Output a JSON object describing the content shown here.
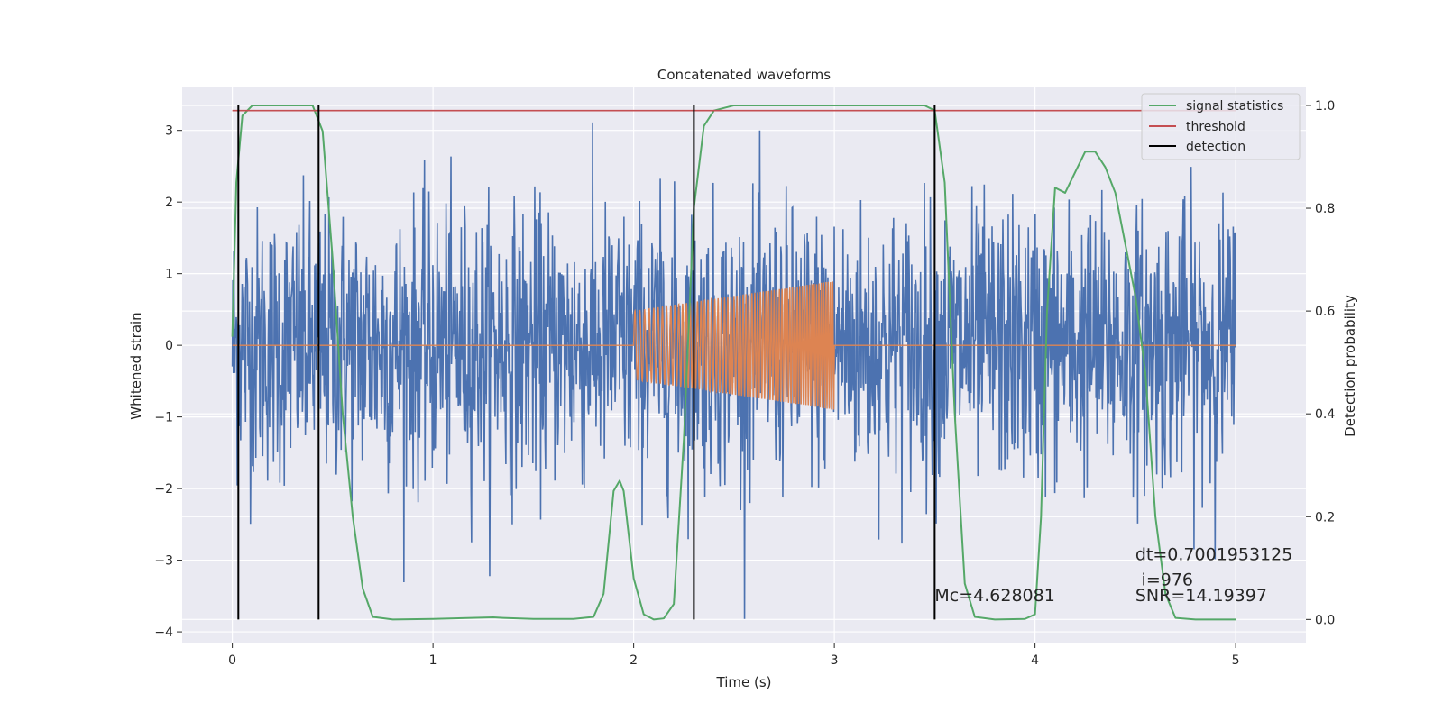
{
  "chart_data": {
    "type": "line",
    "title": "Concatenated waveforms",
    "xlabel": "Time (s)",
    "ylabel": "Whitened strain",
    "y2label": "Detection probability",
    "xlim": [
      -0.25,
      5.35
    ],
    "ylim": [
      -4.15,
      3.6
    ],
    "y2lim": [
      -0.045,
      1.035
    ],
    "x_ticks": [
      0,
      1,
      2,
      3,
      4,
      5
    ],
    "y_ticks": [
      -4,
      -3,
      -2,
      -1,
      0,
      1,
      2,
      3
    ],
    "y2_ticks": [
      0.0,
      0.2,
      0.4,
      0.6,
      0.8,
      1.0
    ],
    "y2_tick_labels": [
      "0.0",
      "0.2",
      "0.4",
      "0.6",
      "0.8",
      "1.0"
    ],
    "grid": true,
    "legend_position": "top-right",
    "legend": [
      {
        "label": "signal statistics",
        "color": "#55a868"
      },
      {
        "label": "threshold",
        "color": "#c44e52"
      },
      {
        "label": "detection",
        "color": "#000000"
      }
    ],
    "colors": {
      "noise": "#4c72b0",
      "injected_signal": "#dd8452",
      "signal_statistics": "#55a868",
      "threshold": "#c44e52",
      "detection": "#000000",
      "plot_background": "#eaeaf2"
    },
    "series": [
      {
        "role": "whitened-noise",
        "axis": "left",
        "x_range": [
          0,
          5
        ],
        "samples": 2048,
        "amplitude_range": [
          -3.9,
          3.25
        ]
      },
      {
        "role": "injected-signal",
        "axis": "left",
        "x_range": [
          2,
          3
        ],
        "envelope_start": 0.48,
        "envelope_end": 0.9
      },
      {
        "name": "signal statistics",
        "axis": "right",
        "x": [
          0,
          0.02,
          0.05,
          0.1,
          0.2,
          0.4,
          0.45,
          0.5,
          0.55,
          0.6,
          0.65,
          0.7,
          0.8,
          1.0,
          1.3,
          1.35,
          1.5,
          1.7,
          1.8,
          1.85,
          1.9,
          1.93,
          1.95,
          2.0,
          2.05,
          2.1,
          2.15,
          2.2,
          2.25,
          2.3,
          2.35,
          2.4,
          2.5,
          3.0,
          3.45,
          3.5,
          3.55,
          3.6,
          3.65,
          3.7,
          3.8,
          3.95,
          4.0,
          4.03,
          4.06,
          4.1,
          4.15,
          4.2,
          4.25,
          4.3,
          4.35,
          4.4,
          4.45,
          4.5,
          4.55,
          4.6,
          4.65,
          4.7,
          4.8,
          5.0
        ],
        "y": [
          0.55,
          0.85,
          0.98,
          1.0,
          1.0,
          1.0,
          0.95,
          0.7,
          0.4,
          0.2,
          0.06,
          0.005,
          0.0,
          0.001,
          0.004,
          0.003,
          0.001,
          0.001,
          0.005,
          0.05,
          0.25,
          0.27,
          0.25,
          0.08,
          0.01,
          0.0,
          0.002,
          0.03,
          0.35,
          0.8,
          0.96,
          0.99,
          1.0,
          1.0,
          1.0,
          0.99,
          0.85,
          0.4,
          0.07,
          0.005,
          0.0,
          0.001,
          0.01,
          0.2,
          0.6,
          0.84,
          0.83,
          0.87,
          0.91,
          0.91,
          0.88,
          0.83,
          0.73,
          0.63,
          0.48,
          0.2,
          0.05,
          0.003,
          0.0,
          0.0
        ]
      },
      {
        "name": "threshold",
        "axis": "right",
        "x": [
          0,
          5
        ],
        "y": [
          0.99,
          0.99
        ]
      }
    ],
    "detections": [
      0.03,
      0.43,
      2.3,
      3.5
    ],
    "annotations": [
      {
        "text": "dt=0.7001953125",
        "x": 4.5,
        "y": -3.0
      },
      {
        "text": "i=976",
        "x": 4.53,
        "y": -3.35
      },
      {
        "text": "Mc=4.628081",
        "x": 3.5,
        "y": -3.57
      },
      {
        "text": "SNR=14.19397",
        "x": 4.5,
        "y": -3.57
      }
    ]
  }
}
